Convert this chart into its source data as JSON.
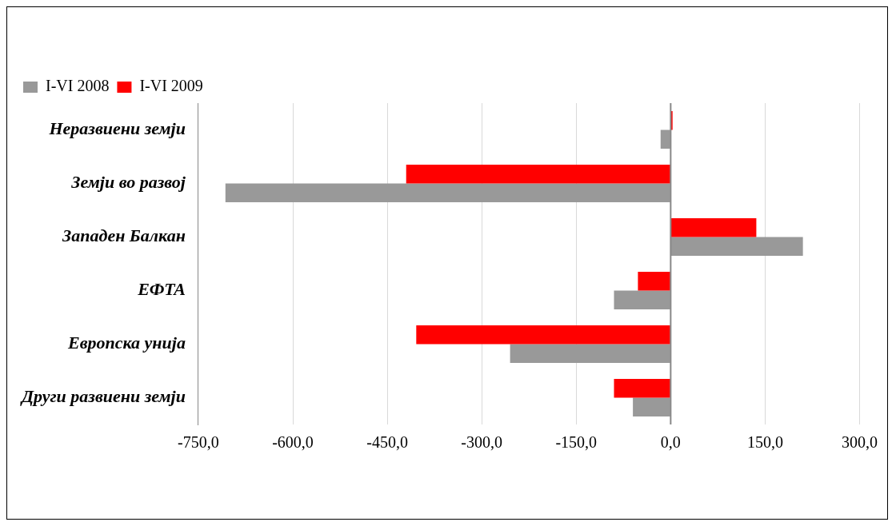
{
  "chart_data": {
    "type": "bar",
    "orientation": "horizontal",
    "categories": [
      "Неразвиени земји",
      "Земји во развој",
      "Западен Балкан",
      "ЕФТА",
      "Европска унија",
      "Други развиени земји"
    ],
    "series": [
      {
        "name": "I-VI 2008",
        "color": "#999999",
        "values": [
          -16,
          -707,
          210,
          -90,
          -255,
          -60
        ]
      },
      {
        "name": "I-VI 2009",
        "color": "#ff0000",
        "values": [
          3,
          -420,
          136,
          -52,
          -404,
          -90
        ]
      }
    ],
    "xlim": [
      -750,
      300
    ],
    "xticks": [
      {
        "value": -750,
        "label": "-750,0"
      },
      {
        "value": -600,
        "label": "-600,0"
      },
      {
        "value": -450,
        "label": "-450,0"
      },
      {
        "value": -300,
        "label": "-300,0"
      },
      {
        "value": -150,
        "label": "-150,0"
      },
      {
        "value": 0,
        "label": "0,0"
      },
      {
        "value": 150,
        "label": "150,0"
      },
      {
        "value": 300,
        "label": "300,0"
      }
    ],
    "grid": "x",
    "legend": "top left"
  }
}
